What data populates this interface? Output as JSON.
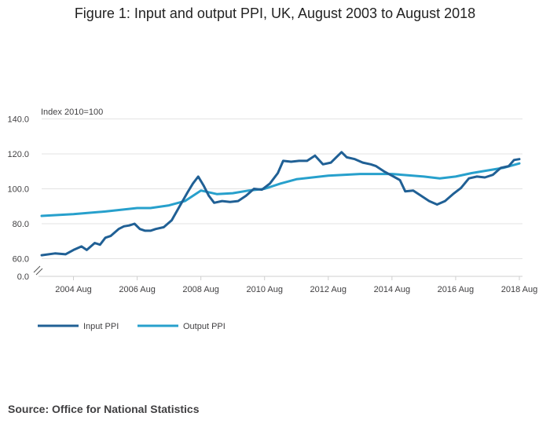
{
  "title": "Figure 1: Input and output PPI, UK, August 2003 to August 2018",
  "source": "Source: Office for National Statistics",
  "chart_data": {
    "type": "line",
    "title": "Figure 1: Input and output PPI, UK, August 2003 to August 2018",
    "ylabel": "Index 2010=100",
    "xlabel": "",
    "ylim": [
      0,
      140
    ],
    "y_ticks": [
      "0.0",
      "60.0",
      "80.0",
      "100.0",
      "120.0",
      "140.0"
    ],
    "y_axis_break": "between 0.0 and 60.0",
    "x_tick_labels": [
      "2004 Aug",
      "2006 Aug",
      "2008 Aug",
      "2010 Aug",
      "2012 Aug",
      "2014 Aug",
      "2016 Aug",
      "2018 Aug"
    ],
    "x_start": "2003-08",
    "x_end": "2018-08",
    "grid": true,
    "legend_position": "bottom-left",
    "series": [
      {
        "name": "Input PPI",
        "color": "#206095",
        "points": [
          [
            "2003-08",
            62
          ],
          [
            "2004-01",
            63
          ],
          [
            "2004-05",
            62.5
          ],
          [
            "2004-08",
            65
          ],
          [
            "2004-11",
            67
          ],
          [
            "2005-01",
            65
          ],
          [
            "2005-04",
            69
          ],
          [
            "2005-06",
            68
          ],
          [
            "2005-08",
            72
          ],
          [
            "2005-10",
            73
          ],
          [
            "2006-01",
            77
          ],
          [
            "2006-03",
            78.5
          ],
          [
            "2006-05",
            79
          ],
          [
            "2006-07",
            80
          ],
          [
            "2006-09",
            77
          ],
          [
            "2006-11",
            76
          ],
          [
            "2007-01",
            76
          ],
          [
            "2007-03",
            77
          ],
          [
            "2007-06",
            78
          ],
          [
            "2007-09",
            82
          ],
          [
            "2007-12",
            90
          ],
          [
            "2008-03",
            98
          ],
          [
            "2008-05",
            103
          ],
          [
            "2008-07",
            107
          ],
          [
            "2008-09",
            102
          ],
          [
            "2008-11",
            96
          ],
          [
            "2009-01",
            92
          ],
          [
            "2009-04",
            93
          ],
          [
            "2009-07",
            92.5
          ],
          [
            "2009-10",
            93
          ],
          [
            "2010-01",
            96
          ],
          [
            "2010-04",
            100
          ],
          [
            "2010-07",
            99.5
          ],
          [
            "2010-10",
            103
          ],
          [
            "2011-01",
            109
          ],
          [
            "2011-03",
            116
          ],
          [
            "2011-06",
            115.5
          ],
          [
            "2011-09",
            116
          ],
          [
            "2011-12",
            116
          ],
          [
            "2012-03",
            119
          ],
          [
            "2012-06",
            114
          ],
          [
            "2012-09",
            115
          ],
          [
            "2012-11",
            118
          ],
          [
            "2013-01",
            121
          ],
          [
            "2013-03",
            118
          ],
          [
            "2013-06",
            117
          ],
          [
            "2013-09",
            115
          ],
          [
            "2013-12",
            114
          ],
          [
            "2014-02",
            113
          ],
          [
            "2014-05",
            110
          ],
          [
            "2014-08",
            107.5
          ],
          [
            "2014-11",
            105
          ],
          [
            "2015-01",
            98.5
          ],
          [
            "2015-04",
            99
          ],
          [
            "2015-07",
            96
          ],
          [
            "2015-10",
            93
          ],
          [
            "2016-01",
            91
          ],
          [
            "2016-04",
            93
          ],
          [
            "2016-07",
            97
          ],
          [
            "2016-10",
            100.5
          ],
          [
            "2017-01",
            106
          ],
          [
            "2017-04",
            107
          ],
          [
            "2017-07",
            106.5
          ],
          [
            "2017-10",
            108
          ],
          [
            "2018-01",
            112
          ],
          [
            "2018-04",
            113
          ],
          [
            "2018-06",
            116.5
          ],
          [
            "2018-08",
            117
          ]
        ]
      },
      {
        "name": "Output PPI",
        "color": "#27a0cc",
        "points": [
          [
            "2003-08",
            84.5
          ],
          [
            "2004-08",
            85.5
          ],
          [
            "2005-08",
            87
          ],
          [
            "2006-08",
            89
          ],
          [
            "2007-01",
            89
          ],
          [
            "2007-08",
            90.5
          ],
          [
            "2008-02",
            93
          ],
          [
            "2008-08",
            99
          ],
          [
            "2009-02",
            97
          ],
          [
            "2009-08",
            97.5
          ],
          [
            "2010-02",
            99
          ],
          [
            "2010-08",
            100
          ],
          [
            "2011-02",
            103
          ],
          [
            "2011-08",
            105.5
          ],
          [
            "2012-08",
            107.5
          ],
          [
            "2013-08",
            108.5
          ],
          [
            "2014-08",
            108.5
          ],
          [
            "2015-08",
            107
          ],
          [
            "2016-02",
            106
          ],
          [
            "2016-08",
            107
          ],
          [
            "2017-02",
            109
          ],
          [
            "2017-08",
            110.5
          ],
          [
            "2018-02",
            112
          ],
          [
            "2018-08",
            114.5
          ]
        ]
      }
    ]
  }
}
